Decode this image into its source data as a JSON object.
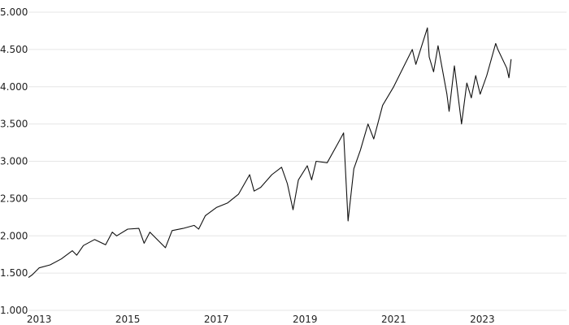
{
  "chart_data": {
    "type": "line",
    "color": "#111111",
    "grid": true,
    "x": [
      2012.76,
      2012.85,
      2013.0,
      2013.25,
      2013.5,
      2013.75,
      2013.85,
      2014.0,
      2014.25,
      2014.5,
      2014.65,
      2014.75,
      2015.0,
      2015.25,
      2015.37,
      2015.5,
      2015.75,
      2015.85,
      2016.0,
      2016.25,
      2016.5,
      2016.6,
      2016.75,
      2017.0,
      2017.25,
      2017.5,
      2017.75,
      2017.85,
      2018.0,
      2018.25,
      2018.47,
      2018.6,
      2018.73,
      2018.85,
      2019.05,
      2019.15,
      2019.25,
      2019.5,
      2019.75,
      2019.87,
      2019.97,
      2020.1,
      2020.25,
      2020.42,
      2020.55,
      2020.75,
      2021.0,
      2021.25,
      2021.42,
      2021.5,
      2021.76,
      2021.8,
      2021.9,
      2022.0,
      2022.2,
      2022.25,
      2022.37,
      2022.53,
      2022.65,
      2022.75,
      2022.85,
      2022.95,
      2023.1,
      2023.3,
      2023.35,
      2023.55,
      2023.6,
      2023.65
    ],
    "values": [
      1440,
      1480,
      1570,
      1610,
      1690,
      1800,
      1740,
      1870,
      1950,
      1880,
      2050,
      2000,
      2090,
      2100,
      1900,
      2050,
      1900,
      1840,
      2070,
      2100,
      2140,
      2090,
      2270,
      2380,
      2440,
      2560,
      2820,
      2600,
      2650,
      2820,
      2920,
      2700,
      2350,
      2750,
      2940,
      2750,
      3000,
      2980,
      3250,
      3380,
      2200,
      2900,
      3150,
      3500,
      3300,
      3750,
      4000,
      4300,
      4500,
      4300,
      4790,
      4400,
      4200,
      4550,
      3900,
      3670,
      4280,
      3500,
      4050,
      3850,
      4150,
      3900,
      4150,
      4580,
      4500,
      4250,
      4120,
      4370
    ],
    "xlim": [
      2012.76,
      2024.9
    ],
    "xticks": [
      2013,
      2015,
      2017,
      2019,
      2021,
      2023
    ],
    "ylim": [
      1000,
      5000
    ],
    "yticks": [
      {
        "value": 1000,
        "label": "1.000"
      },
      {
        "value": 1500,
        "label": "1.500"
      },
      {
        "value": 2000,
        "label": "2.000"
      },
      {
        "value": 2500,
        "label": "2.500"
      },
      {
        "value": 3000,
        "label": "3.000"
      },
      {
        "value": 3500,
        "label": "3.500"
      },
      {
        "value": 4000,
        "label": "4.000"
      },
      {
        "value": 4500,
        "label": "4.500"
      },
      {
        "value": 5000,
        "label": "5.000"
      }
    ]
  }
}
